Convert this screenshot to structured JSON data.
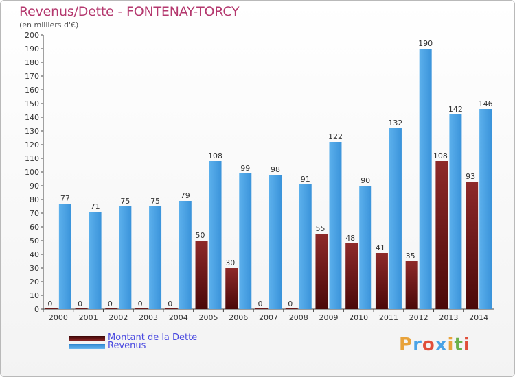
{
  "header": {
    "title": "Revenus/Dette - FONTENAY-TORCY",
    "subtitle": "(en milliers d'€)"
  },
  "legend": {
    "items": [
      {
        "label": "Montant de la Dette",
        "color": "#6b0f0f"
      },
      {
        "label": "Revenus",
        "color": "#4aa3e6"
      }
    ]
  },
  "brand": {
    "logo_text": "Proxiti",
    "colors": [
      "#e8a23a",
      "#4aa3e6",
      "#e04e3a",
      "#4aa3e6",
      "#e8a23a",
      "#6bb04a",
      "#e04e3a"
    ]
  },
  "chart_data": {
    "type": "bar",
    "title": "Revenus/Dette - FONTENAY-TORCY",
    "subtitle": "(en milliers d'€)",
    "categories": [
      "2000",
      "2001",
      "2002",
      "2003",
      "2004",
      "2005",
      "2006",
      "2007",
      "2008",
      "2009",
      "2010",
      "2011",
      "2012",
      "2013",
      "2014"
    ],
    "series": [
      {
        "name": "Montant de la Dette",
        "color": "#7a1c1c",
        "values": [
          0,
          0,
          0,
          0,
          0,
          50,
          30,
          0,
          0,
          55,
          48,
          41,
          35,
          108,
          93
        ]
      },
      {
        "name": "Revenus",
        "color": "#4aa3e6",
        "values": [
          77,
          71,
          75,
          75,
          79,
          108,
          99,
          98,
          91,
          122,
          90,
          132,
          190,
          142,
          146
        ]
      }
    ],
    "ylim": [
      0,
      200
    ],
    "yticks": [
      0,
      10,
      20,
      30,
      40,
      50,
      60,
      70,
      80,
      90,
      100,
      110,
      120,
      130,
      140,
      150,
      160,
      170,
      180,
      190,
      200
    ],
    "grid": false,
    "legend_position": "bottom-left"
  }
}
